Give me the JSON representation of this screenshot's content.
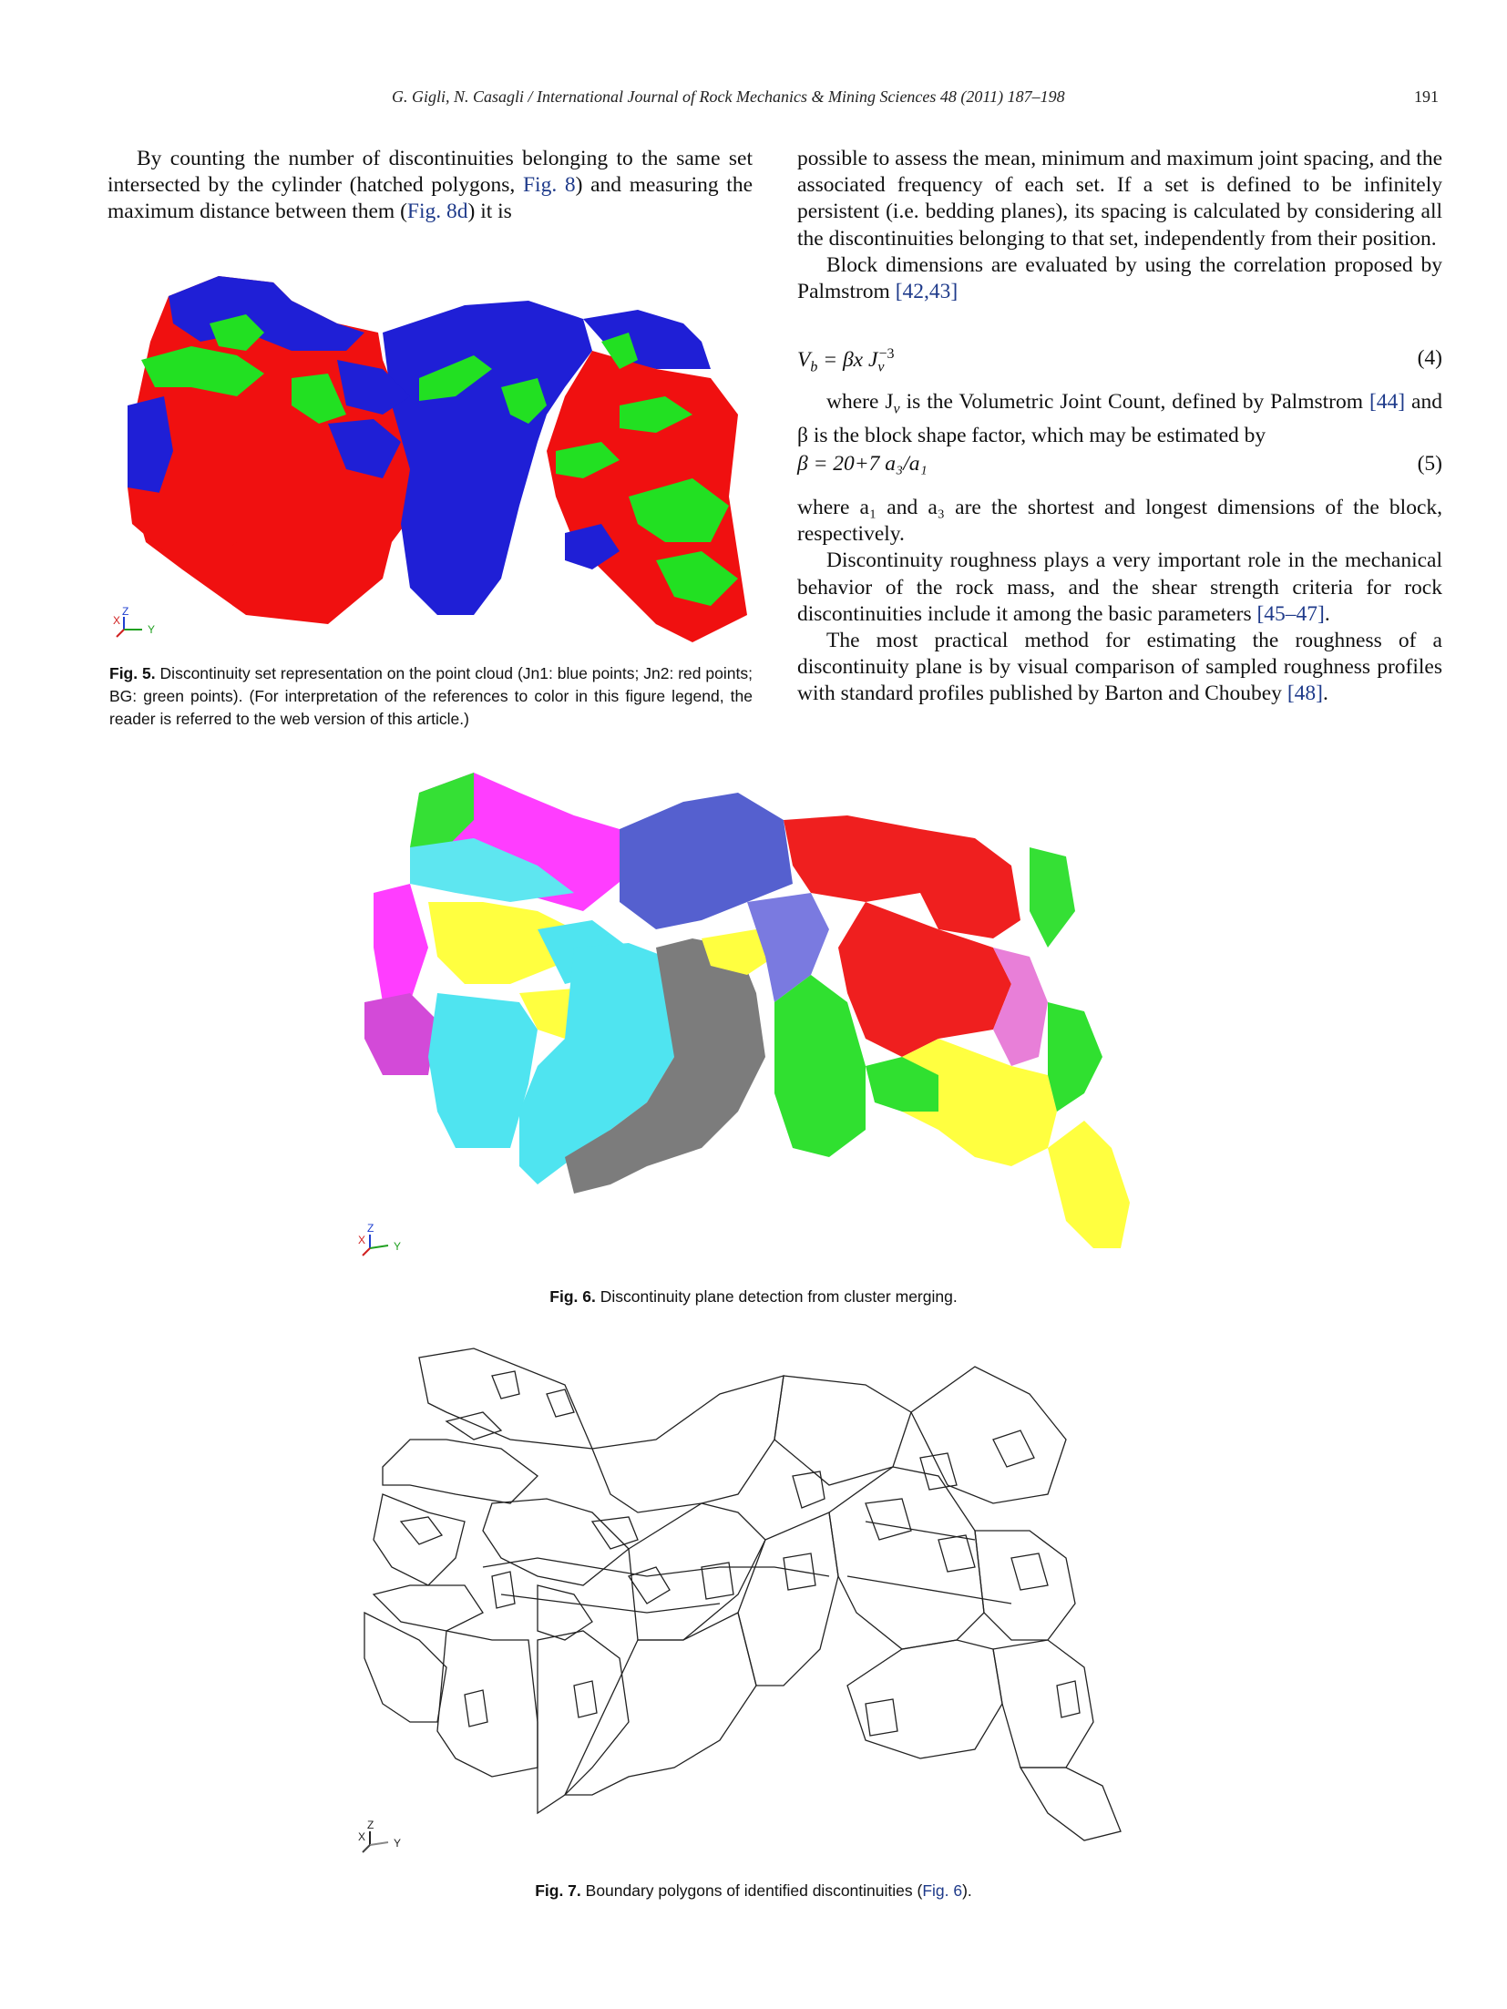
{
  "header": {
    "running_title": "G. Gigli, N. Casagli / International Journal of Rock Mechanics & Mining Sciences 48 (2011) 187–198",
    "page_number": "191"
  },
  "left_column": {
    "para1": "By counting the number of discontinuities belonging to the same set intersected by the cylinder (hatched polygons, ",
    "para1_ref1": "Fig. 8",
    "para1_mid": ") and measuring the maximum distance between them (",
    "para1_ref2": "Fig. 8d",
    "para1_end": ") it is"
  },
  "right_column": {
    "para1": "possible to assess the mean, minimum and maximum joint spacing, and the associated frequency of each set. If a set is defined to be infinitely persistent (i.e. bedding planes), its spacing is calculated by considering all the discontinuities belonging to that set, independently from their position.",
    "para2": "Block dimensions are evaluated by using the correlation proposed by Palmstrom ",
    "para2_ref": "[42,43]",
    "eq4_lhs": "V",
    "eq4_sub": "b",
    "eq4_rhs": " = βx J",
    "eq4_jsub": "v",
    "eq4_jsup": "−3",
    "eq4_number": "(4)",
    "para3_a": "where J",
    "para3_sub": "v",
    "para3_b": " is the Volumetric Joint Count, defined by Palmstrom ",
    "para3_ref": "[44]",
    "para3_c": " and β is the block shape factor, which may be estimated by",
    "eq5": "β = 20+7 a₃/a₁",
    "eq5_number": "(5)",
    "para4": "where a₁ and a₃ are the shortest and longest dimensions of the block, respectively.",
    "para5": "Discontinuity roughness plays a very important role in the mechanical behavior of the rock mass, and the shear strength criteria for rock discontinuities include it among the basic parameters ",
    "para5_ref": "[45–47]",
    "para5_end": ".",
    "para6": "The most practical method for estimating the roughness of a discontinuity plane is by visual comparison of sampled roughness profiles with standard profiles published by Barton and Choubey ",
    "para6_ref": "[48]",
    "para6_end": "."
  },
  "fig5": {
    "label": "Fig. 5.",
    "caption": "Discontinuity set representation on the point cloud (Jn1: blue points; Jn2: red points; BG: green points). (For interpretation of the references to color in this figure legend, the reader is referred to the web version of this article.)",
    "axis_x": "X",
    "axis_y": "Y",
    "axis_z": "Z",
    "colors": {
      "jn1": "#1f1fd6",
      "jn2": "#f01010",
      "bg": "#22e022"
    }
  },
  "fig6": {
    "label": "Fig. 6.",
    "caption": "Discontinuity plane detection from cluster merging.",
    "axis_x": "X",
    "axis_y": "Y",
    "axis_z": "Z"
  },
  "fig7": {
    "label": "Fig. 7.",
    "caption_a": "Boundary polygons of identified discontinuities (",
    "caption_ref": "Fig. 6",
    "caption_b": ").",
    "axis_x": "X",
    "axis_y": "Y",
    "axis_z": "Z"
  }
}
